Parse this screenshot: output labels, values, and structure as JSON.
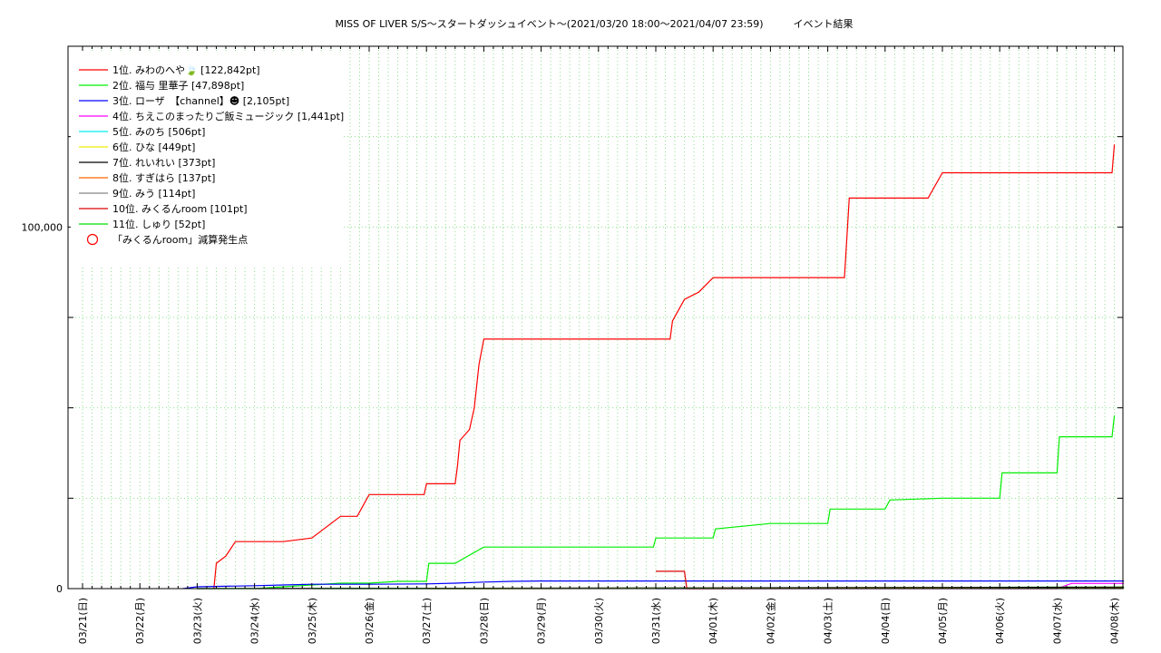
{
  "chart_data": {
    "type": "line",
    "title": "MISS OF LIVER S/S〜スタートダッシュイベント〜(2021/03/20 18:00〜2021/04/07 23:59)　　　イベント結果",
    "xlabel": "",
    "ylabel": "",
    "xlim": [
      "03/21 00:00",
      "04/08 04:00"
    ],
    "ylim": [
      0,
      150000
    ],
    "grid": true,
    "legend_position": "top-left",
    "x_tick_labels": [
      "03/21(日)",
      "03/22(月)",
      "03/23(火)",
      "03/24(水)",
      "03/25(木)",
      "03/26(金)",
      "03/27(土)",
      "03/28(日)",
      "03/29(月)",
      "03/30(火)",
      "03/31(水)",
      "04/01(木)",
      "04/02(金)",
      "04/03(土)",
      "04/04(日)",
      "04/05(月)",
      "04/06(火)",
      "04/07(水)",
      "04/08(木)"
    ],
    "y_tick_values": [
      0,
      100000
    ],
    "y_tick_labels": [
      "0",
      "100,000"
    ],
    "series": [
      {
        "name": "1位. みわのへや🍃 [122,842pt]",
        "color": "#ff0000",
        "points": [
          [
            "03/23 07:00",
            0
          ],
          [
            "03/23 08:00",
            7000
          ],
          [
            "03/23 12:00",
            9000
          ],
          [
            "03/23 16:00",
            13000
          ],
          [
            "03/24 00:00",
            13000
          ],
          [
            "03/24 12:00",
            13000
          ],
          [
            "03/25 00:00",
            14000
          ],
          [
            "03/25 12:00",
            20000
          ],
          [
            "03/25 19:00",
            20000
          ],
          [
            "03/26 00:00",
            26000
          ],
          [
            "03/26 12:00",
            26000
          ],
          [
            "03/26 23:00",
            26000
          ],
          [
            "03/27 00:00",
            29000
          ],
          [
            "03/27 12:00",
            29000
          ],
          [
            "03/27 13:00",
            34000
          ],
          [
            "03/27 14:00",
            41000
          ],
          [
            "03/27 18:00",
            44000
          ],
          [
            "03/27 20:00",
            50000
          ],
          [
            "03/27 22:00",
            62000
          ],
          [
            "03/28 00:00",
            69000
          ],
          [
            "03/28 12:00",
            69000
          ],
          [
            "03/29 00:00",
            69000
          ],
          [
            "03/30 00:00",
            69000
          ],
          [
            "03/31 00:00",
            69000
          ],
          [
            "03/31 06:00",
            69000
          ],
          [
            "03/31 07:00",
            74000
          ],
          [
            "03/31 12:00",
            80000
          ],
          [
            "03/31 18:00",
            82000
          ],
          [
            "04/01 00:00",
            86000
          ],
          [
            "04/02 00:00",
            86000
          ],
          [
            "04/03 00:00",
            86000
          ],
          [
            "04/03 07:00",
            86000
          ],
          [
            "04/03 09:00",
            108000
          ],
          [
            "04/04 00:00",
            108000
          ],
          [
            "04/04 18:00",
            108000
          ],
          [
            "04/05 00:00",
            115000
          ],
          [
            "04/06 00:00",
            115000
          ],
          [
            "04/07 00:00",
            115000
          ],
          [
            "04/07 23:00",
            115000
          ],
          [
            "04/08 00:00",
            122842
          ]
        ]
      },
      {
        "name": "2位. 福与 里華子 [47,898pt]",
        "color": "#00ee00",
        "points": [
          [
            "03/23 00:00",
            0
          ],
          [
            "03/24 00:00",
            0
          ],
          [
            "03/24 12:00",
            500
          ],
          [
            "03/25 00:00",
            1000
          ],
          [
            "03/25 12:00",
            1500
          ],
          [
            "03/26 00:00",
            1500
          ],
          [
            "03/26 12:00",
            2000
          ],
          [
            "03/27 00:00",
            2000
          ],
          [
            "03/27 01:00",
            7000
          ],
          [
            "03/27 12:00",
            7000
          ],
          [
            "03/28 00:00",
            11500
          ],
          [
            "03/29 00:00",
            11500
          ],
          [
            "03/30 00:00",
            11500
          ],
          [
            "03/30 23:00",
            11500
          ],
          [
            "03/31 00:00",
            14000
          ],
          [
            "04/01 00:00",
            14000
          ],
          [
            "04/01 01:00",
            16500
          ],
          [
            "04/02 00:00",
            18000
          ],
          [
            "04/03 00:00",
            18000
          ],
          [
            "04/03 01:00",
            22000
          ],
          [
            "04/04 00:00",
            22000
          ],
          [
            "04/04 02:00",
            24500
          ],
          [
            "04/05 00:00",
            25000
          ],
          [
            "04/06 00:00",
            25000
          ],
          [
            "04/06 01:00",
            32000
          ],
          [
            "04/07 00:00",
            32000
          ],
          [
            "04/07 01:00",
            42000
          ],
          [
            "04/07 23:00",
            42000
          ],
          [
            "04/08 00:00",
            47898
          ]
        ]
      },
      {
        "name": "3位. ローザ　【channel】☻ [2,105pt]",
        "color": "#0000ff",
        "points": [
          [
            "03/22 18:00",
            0
          ],
          [
            "03/23 00:00",
            500
          ],
          [
            "03/24 00:00",
            800
          ],
          [
            "03/24 12:00",
            1000
          ],
          [
            "03/25 00:00",
            1200
          ],
          [
            "03/26 00:00",
            1200
          ],
          [
            "03/27 00:00",
            1300
          ],
          [
            "03/27 12:00",
            1500
          ],
          [
            "03/28 00:00",
            1800
          ],
          [
            "03/28 12:00",
            2000
          ],
          [
            "03/29 00:00",
            2100
          ],
          [
            "04/08 04:00",
            2105
          ]
        ]
      },
      {
        "name": "4位. ちえこのまったりご飯ミュージック [1,441pt]",
        "color": "#ff00ff",
        "points": [
          [
            "03/31 00:00",
            0
          ],
          [
            "04/07 00:00",
            0
          ],
          [
            "04/07 06:00",
            1441
          ],
          [
            "04/08 04:00",
            1441
          ]
        ]
      },
      {
        "name": "5位. みのち [506pt]",
        "color": "#00eeee",
        "points": [
          [
            "03/31 00:00",
            0
          ],
          [
            "04/08 04:00",
            506
          ]
        ]
      },
      {
        "name": "6位. ひな [449pt]",
        "color": "#eeee00",
        "points": [
          [
            "03/28 00:00",
            0
          ],
          [
            "04/08 04:00",
            449
          ]
        ]
      },
      {
        "name": "7位. れいれい [373pt]",
        "color": "#000000",
        "points": [
          [
            "03/23 00:00",
            0
          ],
          [
            "04/08 04:00",
            373
          ]
        ]
      },
      {
        "name": "8位. すぎはら [137pt]",
        "color": "#ff6600",
        "points": [
          [
            "03/27 00:00",
            0
          ],
          [
            "04/08 04:00",
            137
          ]
        ]
      },
      {
        "name": "9位. みう [114pt]",
        "color": "#888888",
        "points": [
          [
            "03/24 00:00",
            0
          ],
          [
            "04/08 04:00",
            114
          ]
        ]
      },
      {
        "name": "10位. みくるんroom [101pt]",
        "color": "#dd0000",
        "points": [
          [
            "03/31 00:00",
            4800
          ],
          [
            "03/31 12:00",
            4800
          ],
          [
            "03/31 13:00",
            0
          ],
          [
            "04/08 04:00",
            101
          ]
        ]
      },
      {
        "name": "11位. しゅり [52pt]",
        "color": "#00dd00",
        "points": [
          [
            "03/25 00:00",
            0
          ],
          [
            "04/08 04:00",
            52
          ]
        ]
      }
    ],
    "annotation_legend": {
      "name": "「みくるんroom」減算発生点",
      "color": "#ff0000",
      "marker": "circle"
    }
  }
}
